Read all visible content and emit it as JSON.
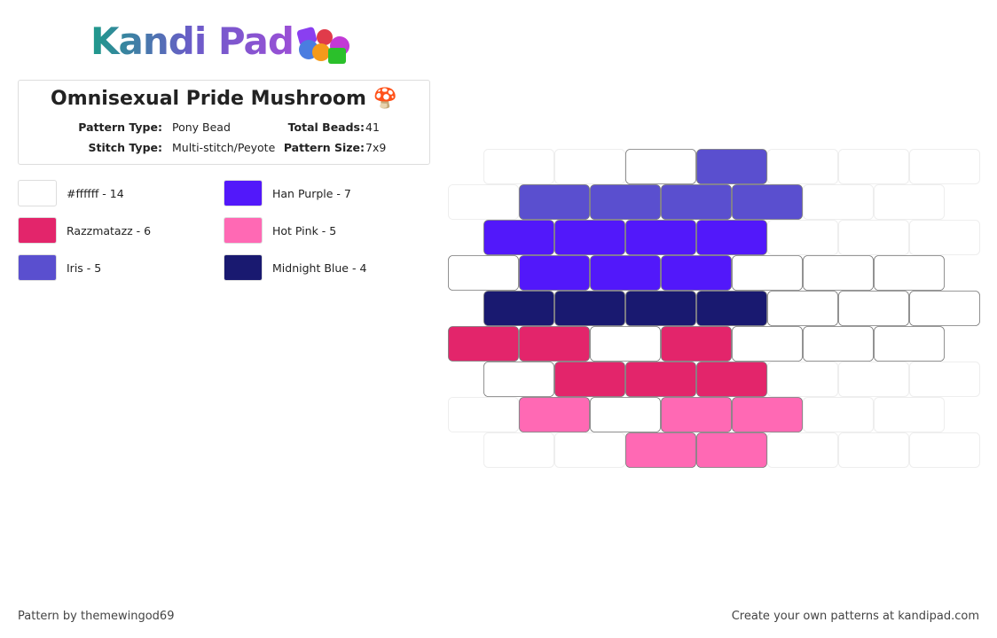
{
  "logo": "Kandi Pad",
  "title": "Omnisexual Pride Mushroom 🍄",
  "details": [
    {
      "label": "Pattern Type:",
      "value": "Pony Bead"
    },
    {
      "label": "Total Beads:",
      "value": "41"
    },
    {
      "label": "Stitch Type:",
      "value": "Multi-stitch/Peyote"
    },
    {
      "label": "Pattern Size:",
      "value": "7x9"
    }
  ],
  "legend": [
    {
      "label": "#ffffff - 14",
      "color": "#ffffff"
    },
    {
      "label": "Han Purple - 7",
      "color": "#5218fa"
    },
    {
      "label": "Razzmatazz - 6",
      "color": "#e3256b"
    },
    {
      "label": "Hot Pink - 5",
      "color": "#ff69b4"
    },
    {
      "label": "Iris - 5",
      "color": "#5a4fcf"
    },
    {
      "label": "Midnight Blue - 4",
      "color": "#191970"
    }
  ],
  "pattern": {
    "rows": [
      [
        null,
        null,
        0,
        4,
        null,
        null,
        null
      ],
      [
        null,
        4,
        4,
        4,
        4,
        null,
        null
      ],
      [
        1,
        1,
        1,
        1,
        null,
        null,
        null
      ],
      [
        0,
        1,
        1,
        1,
        0,
        0,
        0
      ],
      [
        5,
        5,
        5,
        5,
        0,
        0,
        0
      ],
      [
        2,
        2,
        0,
        2,
        0,
        0,
        0
      ],
      [
        0,
        2,
        2,
        2,
        null,
        null,
        null
      ],
      [
        null,
        3,
        0,
        3,
        3,
        null,
        null
      ],
      [
        null,
        null,
        3,
        3,
        null,
        null,
        null
      ]
    ]
  },
  "footer": {
    "credit": "Pattern by themewingod69",
    "promo": "Create your own patterns at kandipad.com"
  }
}
